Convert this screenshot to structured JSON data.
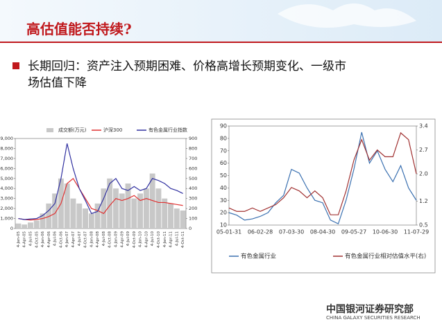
{
  "header": {
    "title": "高估值能否持续?"
  },
  "bullet": {
    "lines": [
      "长期回归：资产注入预期困难、价格高增长预期变化、一级市",
      "场估值下降"
    ]
  },
  "footer": {
    "name": "中国银河证券研究部",
    "name_en": "CHINA GALAXY SECURITIES RESEARCH"
  },
  "chart_data": [
    {
      "type": "combo",
      "legend": "top",
      "categories": [
        "4-Jan-05",
        "4-Apr-05",
        "4-Jul-05",
        "4-Oct-05",
        "4-Jan-06",
        "4-Apr-06",
        "4-Jul-06",
        "4-Oct-06",
        "4-Jan-07",
        "4-Apr-07",
        "4-Jul-07",
        "4-Oct-07",
        "4-Jan-08",
        "4-Apr-08",
        "4-Jul-08",
        "4-Oct-08",
        "4-Jan-09",
        "4-Apr-09",
        "4-Jul-09",
        "4-Oct-09",
        "4-Jan-10",
        "4-Apr-10",
        "4-Jul-10",
        "4-Oct-10",
        "4-Jan-11",
        "4-Apr-11",
        "4-Jul-11",
        "4-Oct-11"
      ],
      "series": [
        {
          "name": "成交额(万元)",
          "type": "bar",
          "color": "#c8c8c8",
          "values": [
            500,
            400,
            600,
            800,
            1500,
            2500,
            3500,
            5000,
            4500,
            3000,
            2500,
            2000,
            1500,
            2500,
            4000,
            5000,
            4000,
            3500,
            4500,
            3000,
            3500,
            4000,
            5500,
            4000,
            3000,
            2500,
            2000,
            1800
          ]
        },
        {
          "name": "沪深300",
          "type": "line",
          "axis": "y2",
          "color": "#e03030",
          "values": [
            100,
            90,
            85,
            90,
            100,
            120,
            150,
            250,
            450,
            500,
            400,
            300,
            200,
            180,
            150,
            230,
            300,
            280,
            300,
            330,
            280,
            300,
            280,
            260,
            260,
            250,
            240,
            230
          ]
        },
        {
          "name": "有色金属行业指数",
          "type": "line",
          "axis": "y2",
          "color": "#3030a0",
          "values": [
            100,
            90,
            95,
            100,
            130,
            180,
            250,
            500,
            850,
            600,
            400,
            280,
            150,
            170,
            300,
            450,
            500,
            400,
            380,
            420,
            380,
            400,
            500,
            480,
            450,
            400,
            380,
            350
          ]
        }
      ],
      "ylim": [
        0,
        9000
      ],
      "yticks": [
        0,
        {
          "value": 1000,
          "label": "1,000"
        },
        {
          "value": 2000,
          "label": "2,000"
        },
        {
          "value": 3000,
          "label": "3,000"
        },
        {
          "value": 4000,
          "label": "4,000"
        },
        {
          "value": 5000,
          "label": "5,000"
        },
        {
          "value": 6000,
          "label": "6,000"
        },
        {
          "value": 7000,
          "label": "7,000"
        },
        {
          "value": 8000,
          "label": "8,000"
        },
        {
          "value": 9000,
          "label": "9,000"
        }
      ],
      "y2lim": [
        0,
        900
      ],
      "y2ticks": [
        0,
        100,
        200,
        300,
        400,
        500,
        600,
        700,
        800,
        900
      ]
    },
    {
      "type": "line",
      "legend": "bottom",
      "categories": [
        "05-01-31",
        null,
        null,
        null,
        "06-02-28",
        null,
        null,
        null,
        "07-03-30",
        null,
        null,
        null,
        "08-04-30",
        null,
        null,
        null,
        "09-05-27",
        null,
        null,
        null,
        "10-06-30",
        null,
        null,
        null,
        "11-07-29"
      ],
      "series": [
        {
          "name": "有色金属行业",
          "color": "#3a70b0",
          "values": [
            20,
            18,
            14,
            15,
            17,
            20,
            28,
            34,
            55,
            52,
            40,
            30,
            28,
            14,
            11,
            30,
            55,
            85,
            60,
            70,
            55,
            45,
            58,
            40,
            30
          ]
        },
        {
          "name": "有色金属行业相对估值水平(右)",
          "axis": "y2",
          "color": "#a03030",
          "values": [
            1.0,
            0.9,
            0.9,
            1.0,
            0.9,
            1.0,
            1.1,
            1.3,
            1.6,
            1.5,
            1.3,
            1.5,
            1.3,
            0.8,
            0.8,
            1.5,
            2.4,
            3.0,
            2.4,
            2.7,
            2.5,
            2.5,
            3.2,
            3.0,
            2.0
          ]
        }
      ],
      "ylim": [
        10,
        90
      ],
      "yticks": [
        10,
        20,
        30,
        40,
        50,
        60,
        70,
        80,
        90
      ],
      "y2lim": [
        0.5,
        3.4
      ],
      "y2ticks": [
        0.5,
        1.2,
        {
          "value": 2.0,
          "label": "2.0"
        },
        2.7,
        3.4
      ]
    }
  ]
}
